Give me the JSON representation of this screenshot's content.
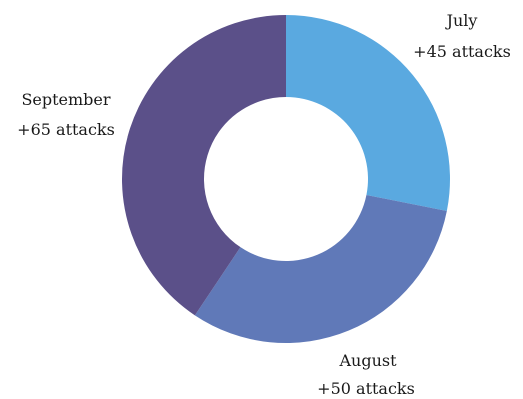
{
  "chart_data": {
    "type": "pie",
    "variant": "donut",
    "start_angle_deg": 0,
    "direction": "clockwise",
    "slices": [
      {
        "label": "July",
        "value_text": "+45 attacks",
        "value": 45,
        "color": "#5aa9e0"
      },
      {
        "label": "August",
        "value_text": "+50 attacks",
        "value": 50,
        "color": "#6079b8"
      },
      {
        "label": "September",
        "value_text": "+65 attacks",
        "value": 65,
        "color": "#5b5089"
      }
    ],
    "legend": "none"
  }
}
